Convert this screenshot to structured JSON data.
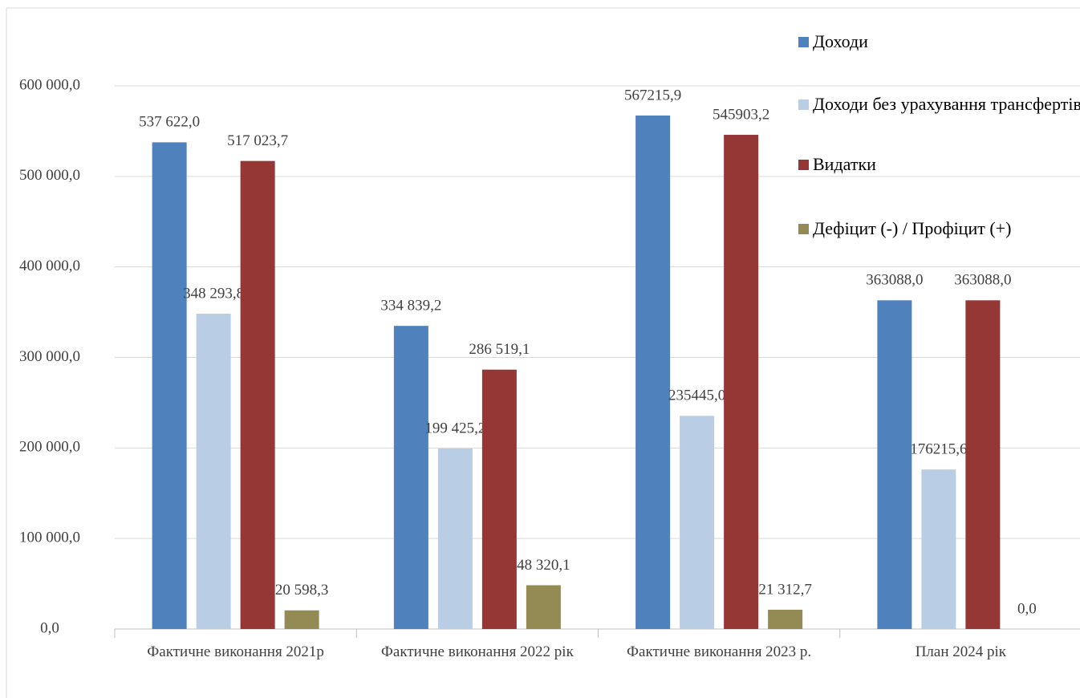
{
  "chart_data": {
    "type": "bar",
    "categories": [
      "Фактичне виконання 2021р",
      "Фактичне виконання 2022 рік",
      "Фактичне виконання 2023 р.",
      "План 2024 рік"
    ],
    "series": [
      {
        "name": "Доходи",
        "color": "#4f81bd",
        "values": [
          537622.0,
          334839.2,
          567215.9,
          363088.0
        ],
        "value_labels": [
          "537 622,0",
          "334 839,2",
          "567215,9",
          "363088,0"
        ]
      },
      {
        "name": "Доходи без урахування трансфертів",
        "color": "#b9cde5",
        "values": [
          348293.8,
          199425.2,
          235445.0,
          176215.6
        ],
        "value_labels": [
          "348 293,8",
          "199 425,2",
          "235445,0",
          "176215,6"
        ]
      },
      {
        "name": "Видатки",
        "color": "#953735",
        "values": [
          517023.7,
          286519.1,
          545903.2,
          363088.0
        ],
        "value_labels": [
          "517 023,7",
          "286 519,1",
          "545903,2",
          "363088,0"
        ]
      },
      {
        "name": "Дефіцит (-) / Профіцит (+)",
        "color": "#948a54",
        "values": [
          20598.3,
          48320.1,
          21312.7,
          0.0
        ],
        "value_labels": [
          "20 598,3",
          "48 320,1",
          "21 312,7",
          "0,0"
        ]
      }
    ],
    "ylim": [
      0,
      600000
    ],
    "yticks": [
      {
        "value": 0,
        "label": "0,0"
      },
      {
        "value": 100000,
        "label": "100 000,0"
      },
      {
        "value": 200000,
        "label": "200 000,0"
      },
      {
        "value": 300000,
        "label": "300 000,0"
      },
      {
        "value": 400000,
        "label": "400 000,0"
      },
      {
        "value": 500000,
        "label": "500 000,0"
      },
      {
        "value": 600000,
        "label": "600 000,0"
      }
    ],
    "grid": true,
    "legend": "top-right"
  }
}
